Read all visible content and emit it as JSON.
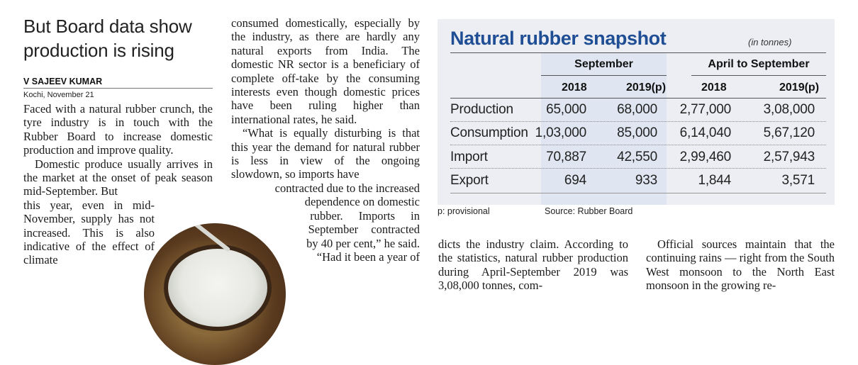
{
  "article": {
    "headline": "But Board data show production is rising",
    "byline": "V SAJEEV KUMAR",
    "dateline": "Kochi, November 21",
    "col1": [
      "Faced with a natural rubber crunch, the tyre industry is in touch with the Rubber Board to increase domestic production and improve quality.",
      "Domestic produce usually arrives in the market at the onset of peak season mid-September. But"
    ],
    "col1_wrap": "this year, even in mid-November, supply has not increased. This is also indicative of the effect of climate",
    "col2_top": "consumed domestically, especially by the industry, as there are hardly any natural exports from India. The domestic NR sector is a beneficiary of complete off-take by the consuming interests even though domestic prices have been ruling higher than international rates, he said.",
    "col2_quote": "“What is equally disturbing is that this year the demand for natural rubber is less in view of the ongoing slowdown, so imports have",
    "col2_shaped": [
      "contracted due to the increased",
      "dependence on domestic",
      "rubber. Imports in",
      "September contracted",
      "by 40 per cent,” he said.",
      "“Had it been a year of"
    ],
    "col3": "dicts the industry claim. According to the statistics, natural rubber production during April-September 2019 was 3,08,000 tonnes, com-",
    "col4": "Official sources maintain that the continuing rains — right from the South West monsoon to the North East monsoon in the growing re-"
  },
  "table": {
    "title": "Natural rubber snapshot",
    "unit": "(in tonnes)",
    "groups": [
      "September",
      "April to September"
    ],
    "years": [
      "2018",
      "2019(p)",
      "2018",
      "2019(p)"
    ],
    "rows": [
      {
        "label": "Production",
        "values": [
          "65,000",
          "68,000",
          "2,77,000",
          "3,08,000"
        ]
      },
      {
        "label": "Consumption",
        "values": [
          "1,03,000",
          "85,000",
          "6,14,040",
          "5,67,120"
        ]
      },
      {
        "label": "Import",
        "values": [
          "70,887",
          "42,550",
          "2,99,460",
          "2,57,943"
        ]
      },
      {
        "label": "Export",
        "values": [
          "694",
          "933",
          "1,844",
          "3,571"
        ]
      }
    ],
    "footnote": "p: provisional",
    "source": "Source: Rubber Board"
  },
  "colors": {
    "title_blue": "#1f4e95",
    "panel_bg": "#eceef3",
    "highlight": "#dfe6f2"
  }
}
